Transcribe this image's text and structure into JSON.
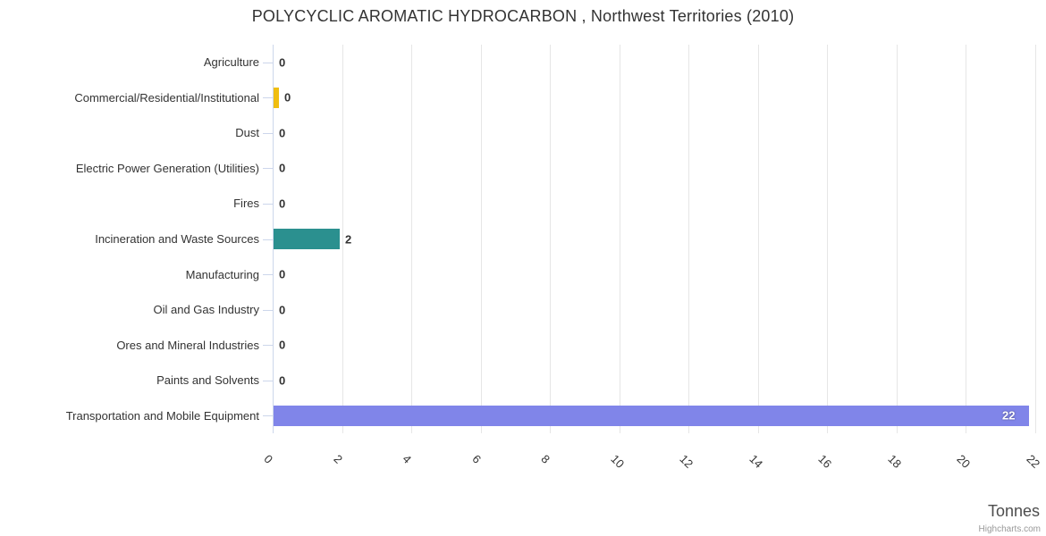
{
  "chart_data": {
    "type": "bar",
    "title": "POLYCYCLIC AROMATIC HYDROCARBON , Northwest Territories (2010)",
    "categories": [
      "Agriculture",
      "Commercial/Residential/Institutional",
      "Dust",
      "Electric Power Generation (Utilities)",
      "Fires",
      "Incineration and Waste Sources",
      "Manufacturing",
      "Oil and Gas Industry",
      "Ores and Mineral Industries",
      "Paints and Solvents",
      "Transportation and Mobile Equipment"
    ],
    "values": [
      0,
      0,
      0,
      0,
      0,
      2,
      0,
      0,
      0,
      0,
      22
    ],
    "plotted_values": [
      0,
      0.16,
      0,
      0,
      0,
      1.9,
      0,
      0,
      0,
      0,
      21.8
    ],
    "bar_colors": {
      "Commercial/Residential/Institutional": "#f0be10",
      "Incineration and Waste Sources": "#2b908f",
      "Transportation and Mobile Equipment": "#8085e9"
    },
    "xlabel": "Tonnes",
    "ylabel": "",
    "xlim": [
      0,
      22
    ],
    "x_ticks": [
      0,
      2,
      4,
      6,
      8,
      10,
      12,
      14,
      16,
      18,
      20,
      22
    ],
    "grid": "vertical-only",
    "legend": "none",
    "credits": "Highcharts.com",
    "colors": {
      "grid": "#e6e6e6",
      "axis_line": "#ccd6eb",
      "text": "#333333",
      "axis_title_text": "#4d4d4d",
      "credits_text": "#999999",
      "inside_label_text": "#ffffff"
    }
  }
}
